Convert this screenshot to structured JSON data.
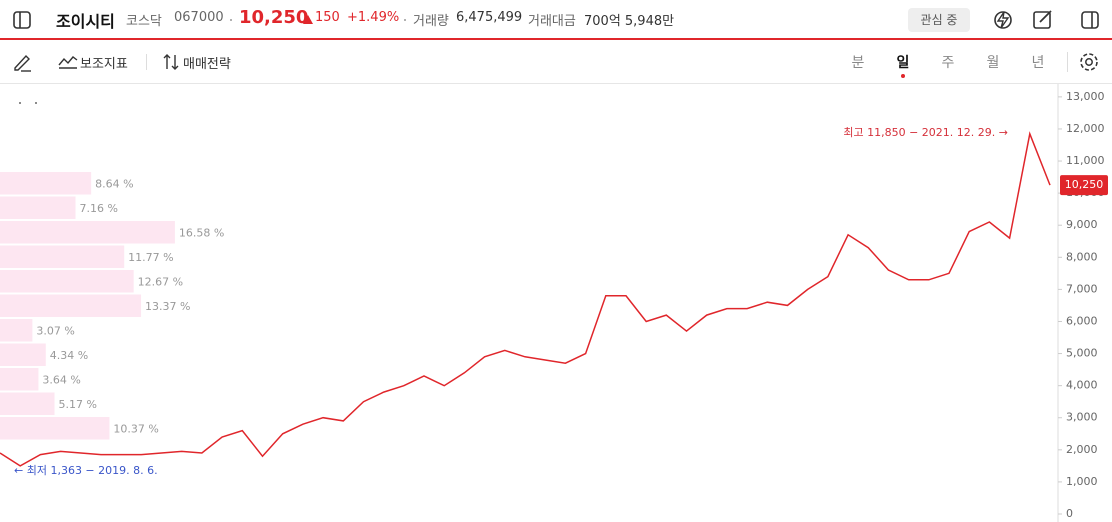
{
  "header": {
    "name": "조이시티",
    "market": "코스닥",
    "code": "067000",
    "price": "10,250",
    "change": "150",
    "change_pct": "+1.49%",
    "volume_label": "거래량",
    "volume": "6,475,499",
    "amount_label": "거래대금",
    "amount": "700억 5,948만",
    "watch_button": "관심 중"
  },
  "toolbar": {
    "indicators": "보조지표",
    "strategy": "매매전략",
    "periods": [
      "분",
      "일",
      "주",
      "월",
      "년"
    ],
    "selected_period": 1
  },
  "chart_data": {
    "type": "line",
    "ylim": [
      0,
      13370
    ],
    "yticks": [
      0,
      {
        "value": 1000,
        "label": "1,000"
      },
      {
        "value": 2000,
        "label": "2,000"
      },
      {
        "value": 3000,
        "label": "3,000"
      },
      {
        "value": 4000,
        "label": "4,000"
      },
      {
        "value": 5000,
        "label": "5,000"
      },
      {
        "value": 6000,
        "label": "6,000"
      },
      {
        "value": 7000,
        "label": "7,000"
      },
      {
        "value": 8000,
        "label": "8,000"
      },
      {
        "value": 9000,
        "label": "9,000"
      },
      {
        "value": 10000,
        "label": "10,000"
      },
      {
        "value": 11000,
        "label": "11,000"
      },
      {
        "value": 12000,
        "label": "12,000"
      },
      {
        "value": 13000,
        "label": "13,000"
      }
    ],
    "current_price": {
      "value": 10250,
      "label": "10,250"
    },
    "high_label": "최고 11,850 − 2021. 12. 29. →",
    "low_label": "← 최저 1,363 − 2019. 8. 6.",
    "volume_profile": {
      "color": "#fde6f1",
      "values": [
        8.64,
        7.16,
        16.58,
        11.77,
        12.67,
        13.37,
        3.07,
        4.34,
        3.64,
        5.17,
        10.37
      ],
      "value_labels": [
        "8.64 %",
        "7.16 %",
        "16.58 %",
        "11.77 %",
        "12.67 %",
        "13.37 %",
        "3.07 %",
        "4.34 %",
        "3.64 %",
        "5.17 %",
        "10.37 %"
      ]
    },
    "color": "#e0262b",
    "values": [
      1900,
      1500,
      1850,
      1950,
      1900,
      1850,
      1850,
      1850,
      1900,
      1950,
      1900,
      2400,
      2600,
      1800,
      2500,
      2800,
      3000,
      2900,
      3500,
      3800,
      4000,
      4300,
      4000,
      4400,
      4900,
      5100,
      4900,
      4800,
      4700,
      5000,
      6800,
      6800,
      6000,
      6200,
      5700,
      6200,
      6400,
      6400,
      6600,
      6500,
      7000,
      7400,
      8700,
      8300,
      7600,
      7300,
      7300,
      7500,
      8800,
      9100,
      8600,
      11850,
      10250
    ]
  }
}
